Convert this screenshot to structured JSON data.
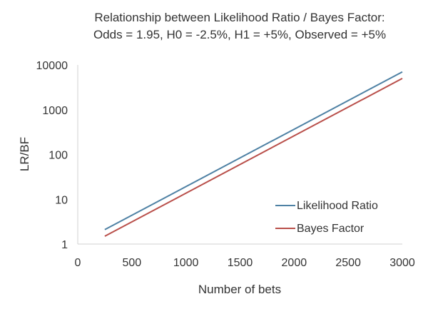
{
  "chart_data": {
    "type": "line",
    "title": "Relationship between Likelihood Ratio / Bayes Factor:",
    "subtitle": "Odds = 1.95, H0 = -2.5%, H1 = +5%, Observed = +5%",
    "xlabel": "Number of bets",
    "ylabel": "LR/BF",
    "xlim": [
      0,
      3000
    ],
    "ylim": [
      1,
      10000
    ],
    "yscale": "log",
    "grid": false,
    "legend_position": "bottom-right",
    "x_ticks": [
      "0",
      "500",
      "1000",
      "1500",
      "2000",
      "2500",
      "3000"
    ],
    "y_ticks": [
      "1",
      "10",
      "100",
      "1000",
      "10000"
    ],
    "series": [
      {
        "name": "Likelihood Ratio",
        "color": "#4e81a4",
        "x": [
          250,
          3000
        ],
        "y": [
          2.1,
          7000
        ]
      },
      {
        "name": "Bayes Factor",
        "color": "#b94f4a",
        "x": [
          250,
          3000
        ],
        "y": [
          1.5,
          5000
        ]
      }
    ]
  }
}
